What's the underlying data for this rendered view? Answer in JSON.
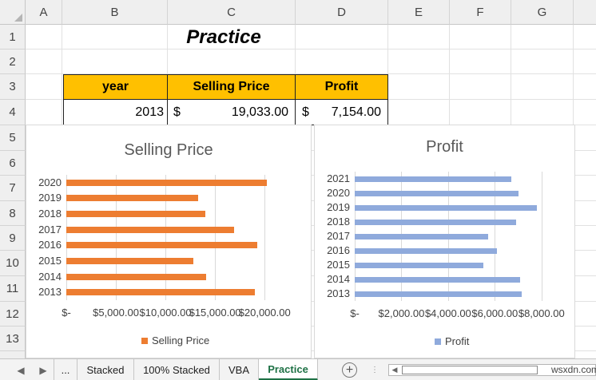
{
  "columns": [
    "A",
    "B",
    "C",
    "D",
    "E",
    "F",
    "G"
  ],
  "rows": [
    "1",
    "2",
    "3",
    "4",
    "5",
    "6",
    "7",
    "8",
    "9",
    "10",
    "11",
    "12",
    "13"
  ],
  "sheet_title": "Practice",
  "table": {
    "headers": [
      "year",
      "Selling Price",
      "Profit"
    ],
    "row": {
      "year": "2013",
      "price_currency": "$",
      "price_value": "19,033.00",
      "profit_currency": "$",
      "profit_value": "7,154.00"
    }
  },
  "colors": {
    "header_fill": "#FFC000",
    "selling_series": "#ED7D31",
    "profit_series": "#8FAADC",
    "active_tab": "#1E7145"
  },
  "chart_data": [
    {
      "type": "bar",
      "orientation": "horizontal",
      "title": "Selling Price",
      "categories": [
        "2013",
        "2014",
        "2015",
        "2016",
        "2017",
        "2018",
        "2019",
        "2020"
      ],
      "series": [
        {
          "name": "Selling Price",
          "values": [
            19033,
            14100,
            12800,
            19300,
            16900,
            14000,
            13300,
            20200
          ]
        }
      ],
      "xlim": [
        0,
        22000
      ],
      "xticks": [
        0,
        5000,
        10000,
        15000,
        20000
      ],
      "xtick_labels": [
        "$-",
        "$5,000.00",
        "$10,000.00",
        "$15,000.00",
        "$20,000.00"
      ],
      "grid": true,
      "legend": "bottom"
    },
    {
      "type": "bar",
      "orientation": "horizontal",
      "title": "Profit",
      "categories": [
        "2013",
        "2014",
        "2015",
        "2016",
        "2017",
        "2018",
        "2019",
        "2020",
        "2021"
      ],
      "series": [
        {
          "name": "Profit",
          "values": [
            7154,
            7100,
            5500,
            6100,
            5700,
            6900,
            7800,
            7000,
            6700
          ]
        }
      ],
      "xlim": [
        0,
        9000
      ],
      "xticks": [
        0,
        2000,
        4000,
        6000,
        8000
      ],
      "xtick_labels": [
        "$-",
        "$2,000.00",
        "$4,000.00",
        "$6,000.00",
        "$8,000.00"
      ],
      "grid": true,
      "legend": "bottom"
    }
  ],
  "tabbar": {
    "prev_icon": "◀",
    "next_icon": "▶",
    "more": "...",
    "tabs": [
      "Stacked",
      "100% Stacked",
      "VBA",
      "Practice"
    ],
    "active_tab": "Practice",
    "add_icon": "+",
    "scroll_left_icon": "◀",
    "watermark": "wsxdn.com"
  }
}
